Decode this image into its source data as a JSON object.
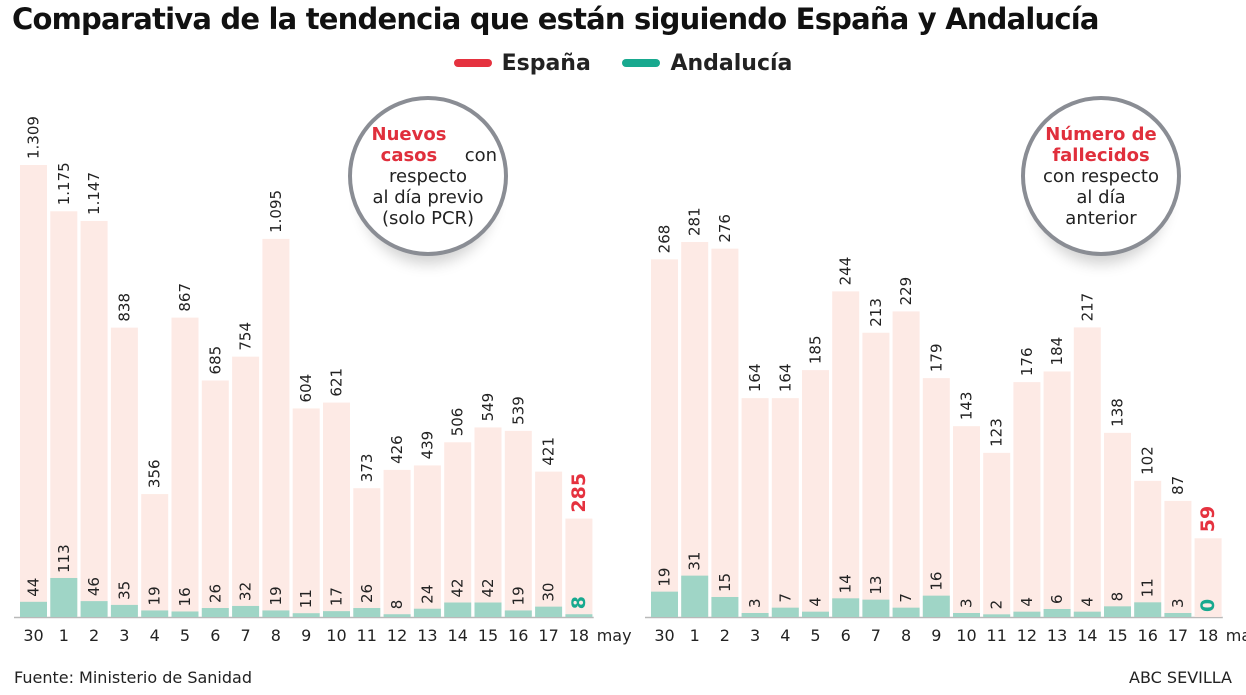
{
  "title": "Comparativa de la tendencia que están siguiendo España y Andalucía",
  "legend": [
    {
      "name": "España",
      "color": "#e5323f"
    },
    {
      "name": "Andalucía",
      "color": "#18a98f"
    }
  ],
  "colors": {
    "espana_bar": "#fdeae5",
    "andalucia_bar": "#9fd5c6",
    "highlight_espana": "#e5323f",
    "highlight_andalucia": "#18a98f"
  },
  "source": "Fuente: Ministerio de Sanidad",
  "credit": "ABC SEVILLA",
  "chart_data": [
    {
      "type": "bar",
      "annotation": {
        "highlight": "Nuevos casos",
        "rest_line1": "con",
        "rest": [
          "respecto",
          "al día previo",
          "(solo PCR)"
        ]
      },
      "categories": [
        "30",
        "1",
        "2",
        "3",
        "4",
        "5",
        "6",
        "7",
        "8",
        "9",
        "10",
        "11",
        "12",
        "13",
        "14",
        "15",
        "16",
        "17",
        "18"
      ],
      "x_unit": "may",
      "series": [
        {
          "name": "España",
          "values": [
            1309,
            1175,
            1147,
            838,
            356,
            867,
            685,
            754,
            1095,
            604,
            621,
            373,
            426,
            439,
            506,
            549,
            539,
            421,
            285
          ],
          "labels": [
            "1.309",
            "1.175",
            "1.147",
            "838",
            "356",
            "867",
            "685",
            "754",
            "1.095",
            "604",
            "621",
            "373",
            "426",
            "439",
            "506",
            "549",
            "539",
            "421",
            "285"
          ]
        },
        {
          "name": "Andalucía",
          "values": [
            44,
            113,
            46,
            35,
            19,
            16,
            26,
            32,
            19,
            11,
            17,
            26,
            8,
            24,
            42,
            42,
            19,
            30,
            8
          ],
          "labels": [
            "44",
            "113",
            "46",
            "35",
            "19",
            "16",
            "26",
            "32",
            "19",
            "11",
            "17",
            "26",
            "8",
            "24",
            "42",
            "42",
            "19",
            "30",
            "8"
          ]
        }
      ],
      "ylim": [
        0,
        1309
      ]
    },
    {
      "type": "bar",
      "annotation": {
        "highlight": "Número de fallecidos",
        "rest_line1": "",
        "rest": [
          "con respecto",
          "al día",
          "anterior"
        ]
      },
      "categories": [
        "30",
        "1",
        "2",
        "3",
        "4",
        "5",
        "6",
        "7",
        "8",
        "9",
        "10",
        "11",
        "12",
        "13",
        "14",
        "15",
        "16",
        "17",
        "18"
      ],
      "x_unit": "may",
      "series": [
        {
          "name": "España",
          "values": [
            268,
            281,
            276,
            164,
            164,
            185,
            244,
            213,
            229,
            179,
            143,
            123,
            176,
            184,
            217,
            138,
            102,
            87,
            59
          ],
          "labels": [
            "268",
            "281",
            "276",
            "164",
            "164",
            "185",
            "244",
            "213",
            "229",
            "179",
            "143",
            "123",
            "176",
            "184",
            "217",
            "138",
            "102",
            "87",
            "59"
          ]
        },
        {
          "name": "Andalucía",
          "values": [
            19,
            31,
            15,
            3,
            7,
            4,
            14,
            13,
            7,
            16,
            3,
            2,
            4,
            6,
            4,
            8,
            11,
            3,
            0
          ],
          "labels": [
            "19",
            "31",
            "15",
            "3",
            "7",
            "4",
            "14",
            "13",
            "7",
            "16",
            "3",
            "2",
            "4",
            "6",
            "4",
            "8",
            "11",
            "3",
            "0"
          ]
        }
      ],
      "ylim": [
        0,
        281
      ]
    }
  ]
}
